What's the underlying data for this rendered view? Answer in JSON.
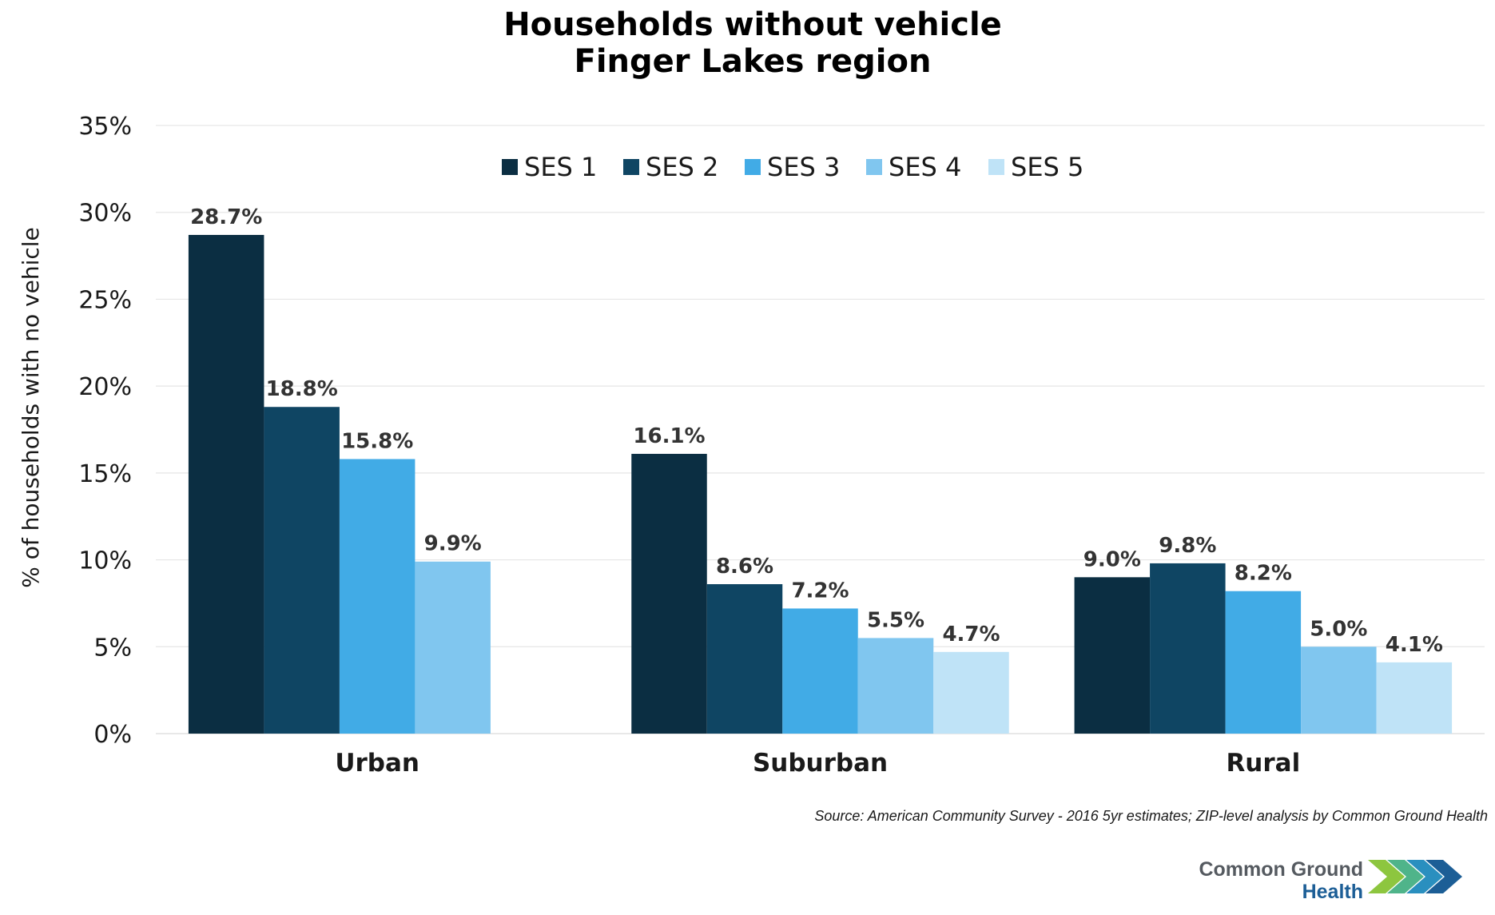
{
  "chart_data": {
    "type": "bar",
    "title": [
      "Households without vehicle",
      "Finger Lakes region"
    ],
    "ylabel": "% of households with no vehicle",
    "xlabel": "",
    "ylim": [
      0,
      35
    ],
    "yticks": [
      0,
      5,
      10,
      15,
      20,
      25,
      30,
      35
    ],
    "ytick_labels": [
      "0%",
      "5%",
      "10%",
      "15%",
      "20%",
      "25%",
      "30%",
      "35%"
    ],
    "grid": true,
    "legend_position": "top",
    "categories": [
      "Urban",
      "Suburban",
      "Rural"
    ],
    "series": [
      {
        "name": "SES 1",
        "color": "#0b2e42",
        "values": [
          28.7,
          16.1,
          9.0
        ],
        "labels": [
          "28.7%",
          "16.1%",
          "9.0%"
        ]
      },
      {
        "name": "SES 2",
        "color": "#0f4563",
        "values": [
          18.8,
          8.6,
          9.8
        ],
        "labels": [
          "18.8%",
          "8.6%",
          "9.8%"
        ]
      },
      {
        "name": "SES 3",
        "color": "#41abe6",
        "values": [
          15.8,
          7.2,
          8.2
        ],
        "labels": [
          "15.8%",
          "7.2%",
          "8.2%"
        ]
      },
      {
        "name": "SES 4",
        "color": "#80c6ef",
        "values": [
          9.9,
          5.5,
          5.0
        ],
        "labels": [
          "9.9%",
          "5.5%",
          "5.0%"
        ]
      },
      {
        "name": "SES 5",
        "color": "#bfe3f7",
        "values": [
          null,
          4.7,
          4.1
        ],
        "labels": [
          "",
          "4.7%",
          "4.1%"
        ]
      }
    ]
  },
  "source": "Source: American Community Survey  - 2016 5yr estimates;  ZIP-level analysis by Common Ground Health",
  "logo": {
    "line1": "Common Ground",
    "line2": "Health",
    "colors": [
      "#8dc63f",
      "#4fb48a",
      "#2a8fbf",
      "#1c5e96"
    ]
  }
}
